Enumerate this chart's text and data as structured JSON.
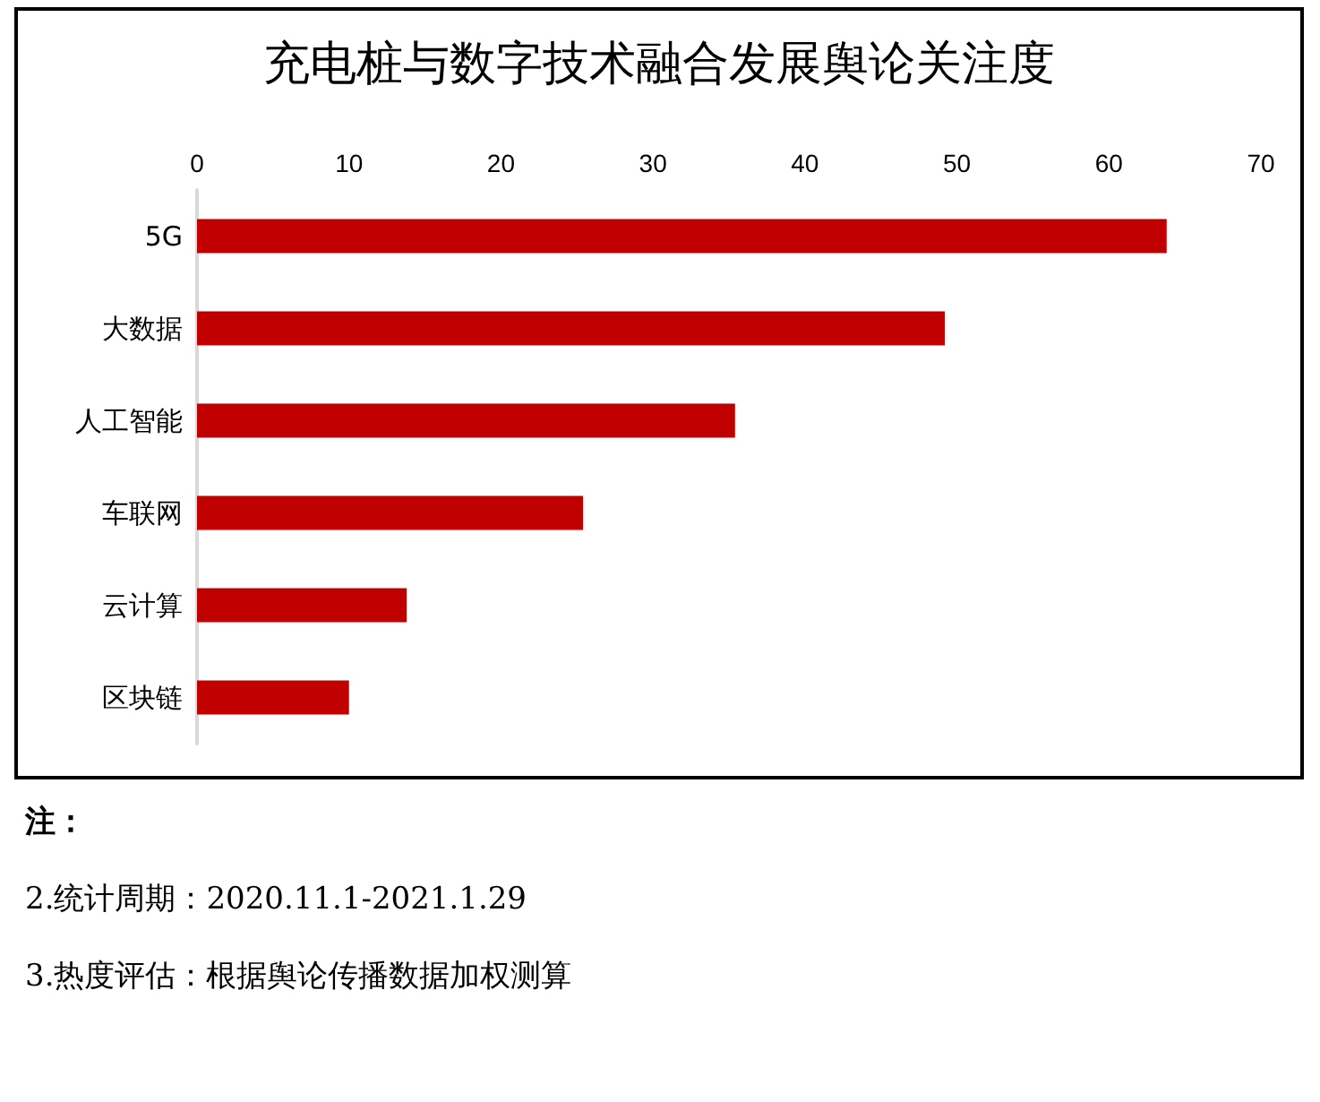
{
  "chart_data": {
    "type": "bar",
    "orientation": "horizontal",
    "title": "充电桩与数字技术融合发展舆论关注度",
    "categories": [
      "5G",
      "大数据",
      "人工智能",
      "车联网",
      "云计算",
      "区块链"
    ],
    "values": [
      63.8,
      49.2,
      35.4,
      25.4,
      13.8,
      10.0
    ],
    "color": "#c00000",
    "xlim": [
      0,
      70
    ],
    "xticks": [
      0,
      10,
      20,
      30,
      40,
      50,
      60,
      70
    ],
    "grid": false,
    "annotations": [
      "注：",
      "2.统计周期：2020.11.1-2021.1.29",
      "3.热度评估：根据舆论传播数据加权测算"
    ]
  }
}
